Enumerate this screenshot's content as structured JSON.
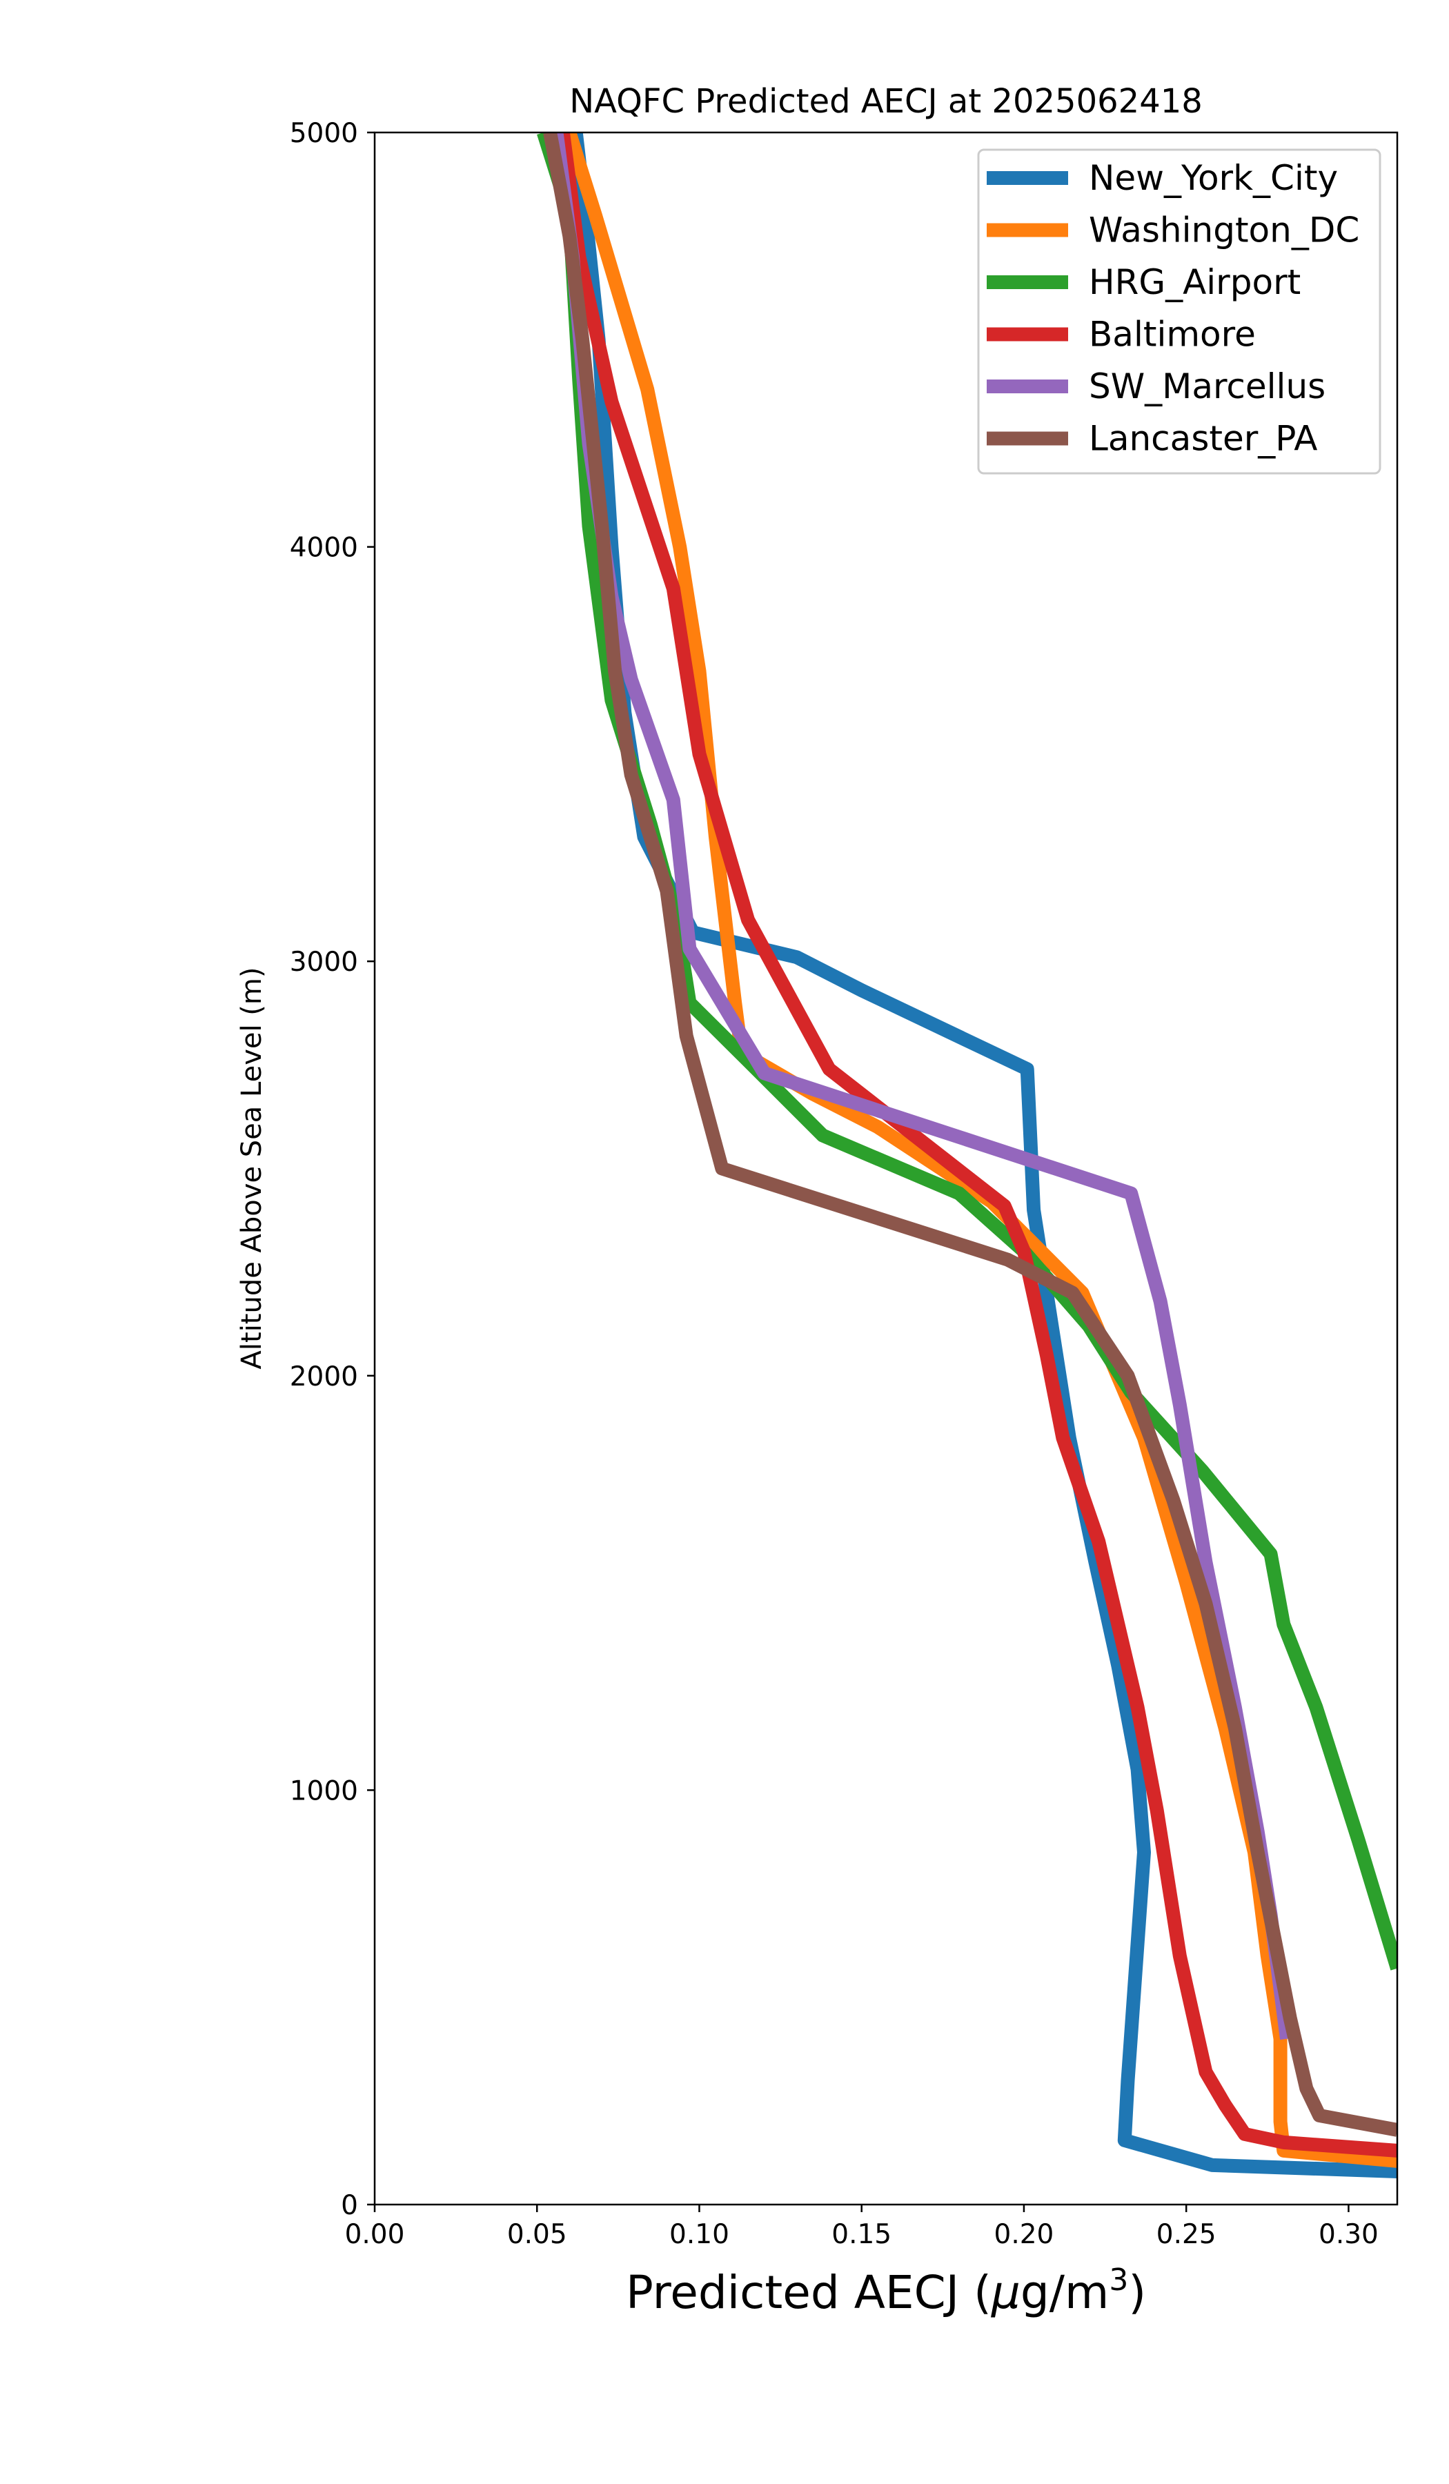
{
  "chart_data": {
    "type": "line",
    "title": "NAQFC Predicted AECJ at 2025062418",
    "xlabel_main": "Predicted AECJ (",
    "xlabel_mu": "μ",
    "xlabel_unit": "g/m",
    "xlabel_sup": "3",
    "xlabel_close": ")",
    "ylabel": "Altitude Above Sea Level (m)",
    "xlim": [
      0.0,
      0.315
    ],
    "ylim": [
      0,
      5000
    ],
    "xticks": [
      "0.00",
      "0.05",
      "0.10",
      "0.15",
      "0.20",
      "0.25",
      "0.30"
    ],
    "yticks": [
      "0",
      "1000",
      "2000",
      "3000",
      "4000",
      "5000"
    ],
    "legend_position": "upper right",
    "series": [
      {
        "name": "New_York_City",
        "color": "#1f77b4",
        "points": [
          [
            0.315,
            80
          ],
          [
            0.258,
            95
          ],
          [
            0.231,
            155
          ],
          [
            0.232,
            300
          ],
          [
            0.234,
            520
          ],
          [
            0.237,
            850
          ],
          [
            0.235,
            1050
          ],
          [
            0.229,
            1300
          ],
          [
            0.222,
            1550
          ],
          [
            0.214,
            1850
          ],
          [
            0.208,
            2150
          ],
          [
            0.203,
            2400
          ],
          [
            0.201,
            2740
          ],
          [
            0.15,
            2930
          ],
          [
            0.13,
            3010
          ],
          [
            0.098,
            3070
          ],
          [
            0.083,
            3300
          ],
          [
            0.077,
            3600
          ],
          [
            0.073,
            4000
          ],
          [
            0.069,
            4500
          ],
          [
            0.065,
            4800
          ],
          [
            0.062,
            5000
          ]
        ]
      },
      {
        "name": "Washington_DC",
        "color": "#ff7f0e",
        "points": [
          [
            0.315,
            105
          ],
          [
            0.28,
            130
          ],
          [
            0.279,
            200
          ],
          [
            0.279,
            400
          ],
          [
            0.275,
            600
          ],
          [
            0.271,
            850
          ],
          [
            0.262,
            1150
          ],
          [
            0.25,
            1500
          ],
          [
            0.237,
            1850
          ],
          [
            0.218,
            2200
          ],
          [
            0.19,
            2420
          ],
          [
            0.155,
            2600
          ],
          [
            0.135,
            2680
          ],
          [
            0.113,
            2780
          ],
          [
            0.111,
            2900
          ],
          [
            0.105,
            3300
          ],
          [
            0.1,
            3700
          ],
          [
            0.094,
            4000
          ],
          [
            0.084,
            4380
          ],
          [
            0.068,
            4800
          ],
          [
            0.06,
            5000
          ]
        ]
      },
      {
        "name": "HRG_Airport",
        "color": "#2ca02c",
        "points": [
          [
            0.315,
            570
          ],
          [
            0.303,
            880
          ],
          [
            0.29,
            1200
          ],
          [
            0.28,
            1400
          ],
          [
            0.276,
            1570
          ],
          [
            0.255,
            1770
          ],
          [
            0.233,
            1960
          ],
          [
            0.22,
            2120
          ],
          [
            0.2,
            2300
          ],
          [
            0.18,
            2440
          ],
          [
            0.138,
            2580
          ],
          [
            0.115,
            2760
          ],
          [
            0.097,
            2900
          ],
          [
            0.093,
            3100
          ],
          [
            0.085,
            3330
          ],
          [
            0.073,
            3630
          ],
          [
            0.066,
            4050
          ],
          [
            0.063,
            4400
          ],
          [
            0.06,
            4800
          ],
          [
            0.052,
            5000
          ]
        ]
      },
      {
        "name": "Baltimore",
        "color": "#d62728",
        "points": [
          [
            0.315,
            130
          ],
          [
            0.28,
            150
          ],
          [
            0.268,
            170
          ],
          [
            0.262,
            240
          ],
          [
            0.256,
            320
          ],
          [
            0.252,
            460
          ],
          [
            0.248,
            600
          ],
          [
            0.246,
            700
          ],
          [
            0.241,
            950
          ],
          [
            0.235,
            1200
          ],
          [
            0.223,
            1600
          ],
          [
            0.212,
            1850
          ],
          [
            0.207,
            2050
          ],
          [
            0.2,
            2300
          ],
          [
            0.194,
            2410
          ],
          [
            0.14,
            2740
          ],
          [
            0.115,
            3100
          ],
          [
            0.1,
            3500
          ],
          [
            0.092,
            3900
          ],
          [
            0.073,
            4350
          ],
          [
            0.063,
            4700
          ],
          [
            0.058,
            5000
          ]
        ]
      },
      {
        "name": "SW_Marcellus",
        "color": "#9467bd",
        "points": [
          [
            0.281,
            400
          ],
          [
            0.276,
            700
          ],
          [
            0.272,
            900
          ],
          [
            0.265,
            1200
          ],
          [
            0.256,
            1550
          ],
          [
            0.248,
            1930
          ],
          [
            0.242,
            2180
          ],
          [
            0.233,
            2440
          ],
          [
            0.12,
            2730
          ],
          [
            0.097,
            3030
          ],
          [
            0.092,
            3390
          ],
          [
            0.079,
            3680
          ],
          [
            0.073,
            3880
          ],
          [
            0.066,
            4250
          ],
          [
            0.061,
            4700
          ],
          [
            0.056,
            5000
          ]
        ]
      },
      {
        "name": "Lancaster_PA",
        "color": "#8c564b",
        "points": [
          [
            0.315,
            180
          ],
          [
            0.291,
            215
          ],
          [
            0.287,
            280
          ],
          [
            0.282,
            450
          ],
          [
            0.277,
            650
          ],
          [
            0.272,
            850
          ],
          [
            0.265,
            1150
          ],
          [
            0.256,
            1450
          ],
          [
            0.246,
            1700
          ],
          [
            0.232,
            2000
          ],
          [
            0.215,
            2200
          ],
          [
            0.195,
            2280
          ],
          [
            0.107,
            2500
          ],
          [
            0.096,
            2820
          ],
          [
            0.09,
            3170
          ],
          [
            0.079,
            3450
          ],
          [
            0.074,
            3700
          ],
          [
            0.07,
            4050
          ],
          [
            0.068,
            4200
          ],
          [
            0.064,
            4500
          ],
          [
            0.06,
            4750
          ],
          [
            0.054,
            5000
          ]
        ]
      }
    ]
  }
}
